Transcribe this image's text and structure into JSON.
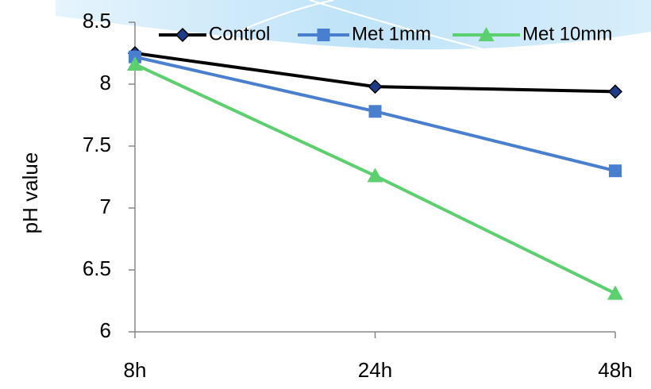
{
  "chart_data": {
    "type": "line",
    "y_label": "pH value",
    "categories": [
      "8h",
      "24h",
      "48h"
    ],
    "series": [
      {
        "name": "Control",
        "color": "#000000",
        "marker": "diamond",
        "marker_color": "#1f3c88",
        "values": [
          8.25,
          7.98,
          7.94
        ]
      },
      {
        "name": "Met 1mm",
        "color": "#4a7fd0",
        "marker": "square",
        "marker_color": "#4a7fd0",
        "values": [
          8.22,
          7.78,
          7.3
        ]
      },
      {
        "name": "Met 10mm",
        "color": "#5ccf6e",
        "marker": "triangle",
        "marker_color": "#5ccf6e",
        "values": [
          8.16,
          7.26,
          6.31
        ]
      }
    ],
    "ylim": [
      6,
      8.5
    ],
    "yticks": [
      6,
      6.5,
      7,
      7.5,
      8,
      8.5
    ],
    "legend": "top"
  }
}
